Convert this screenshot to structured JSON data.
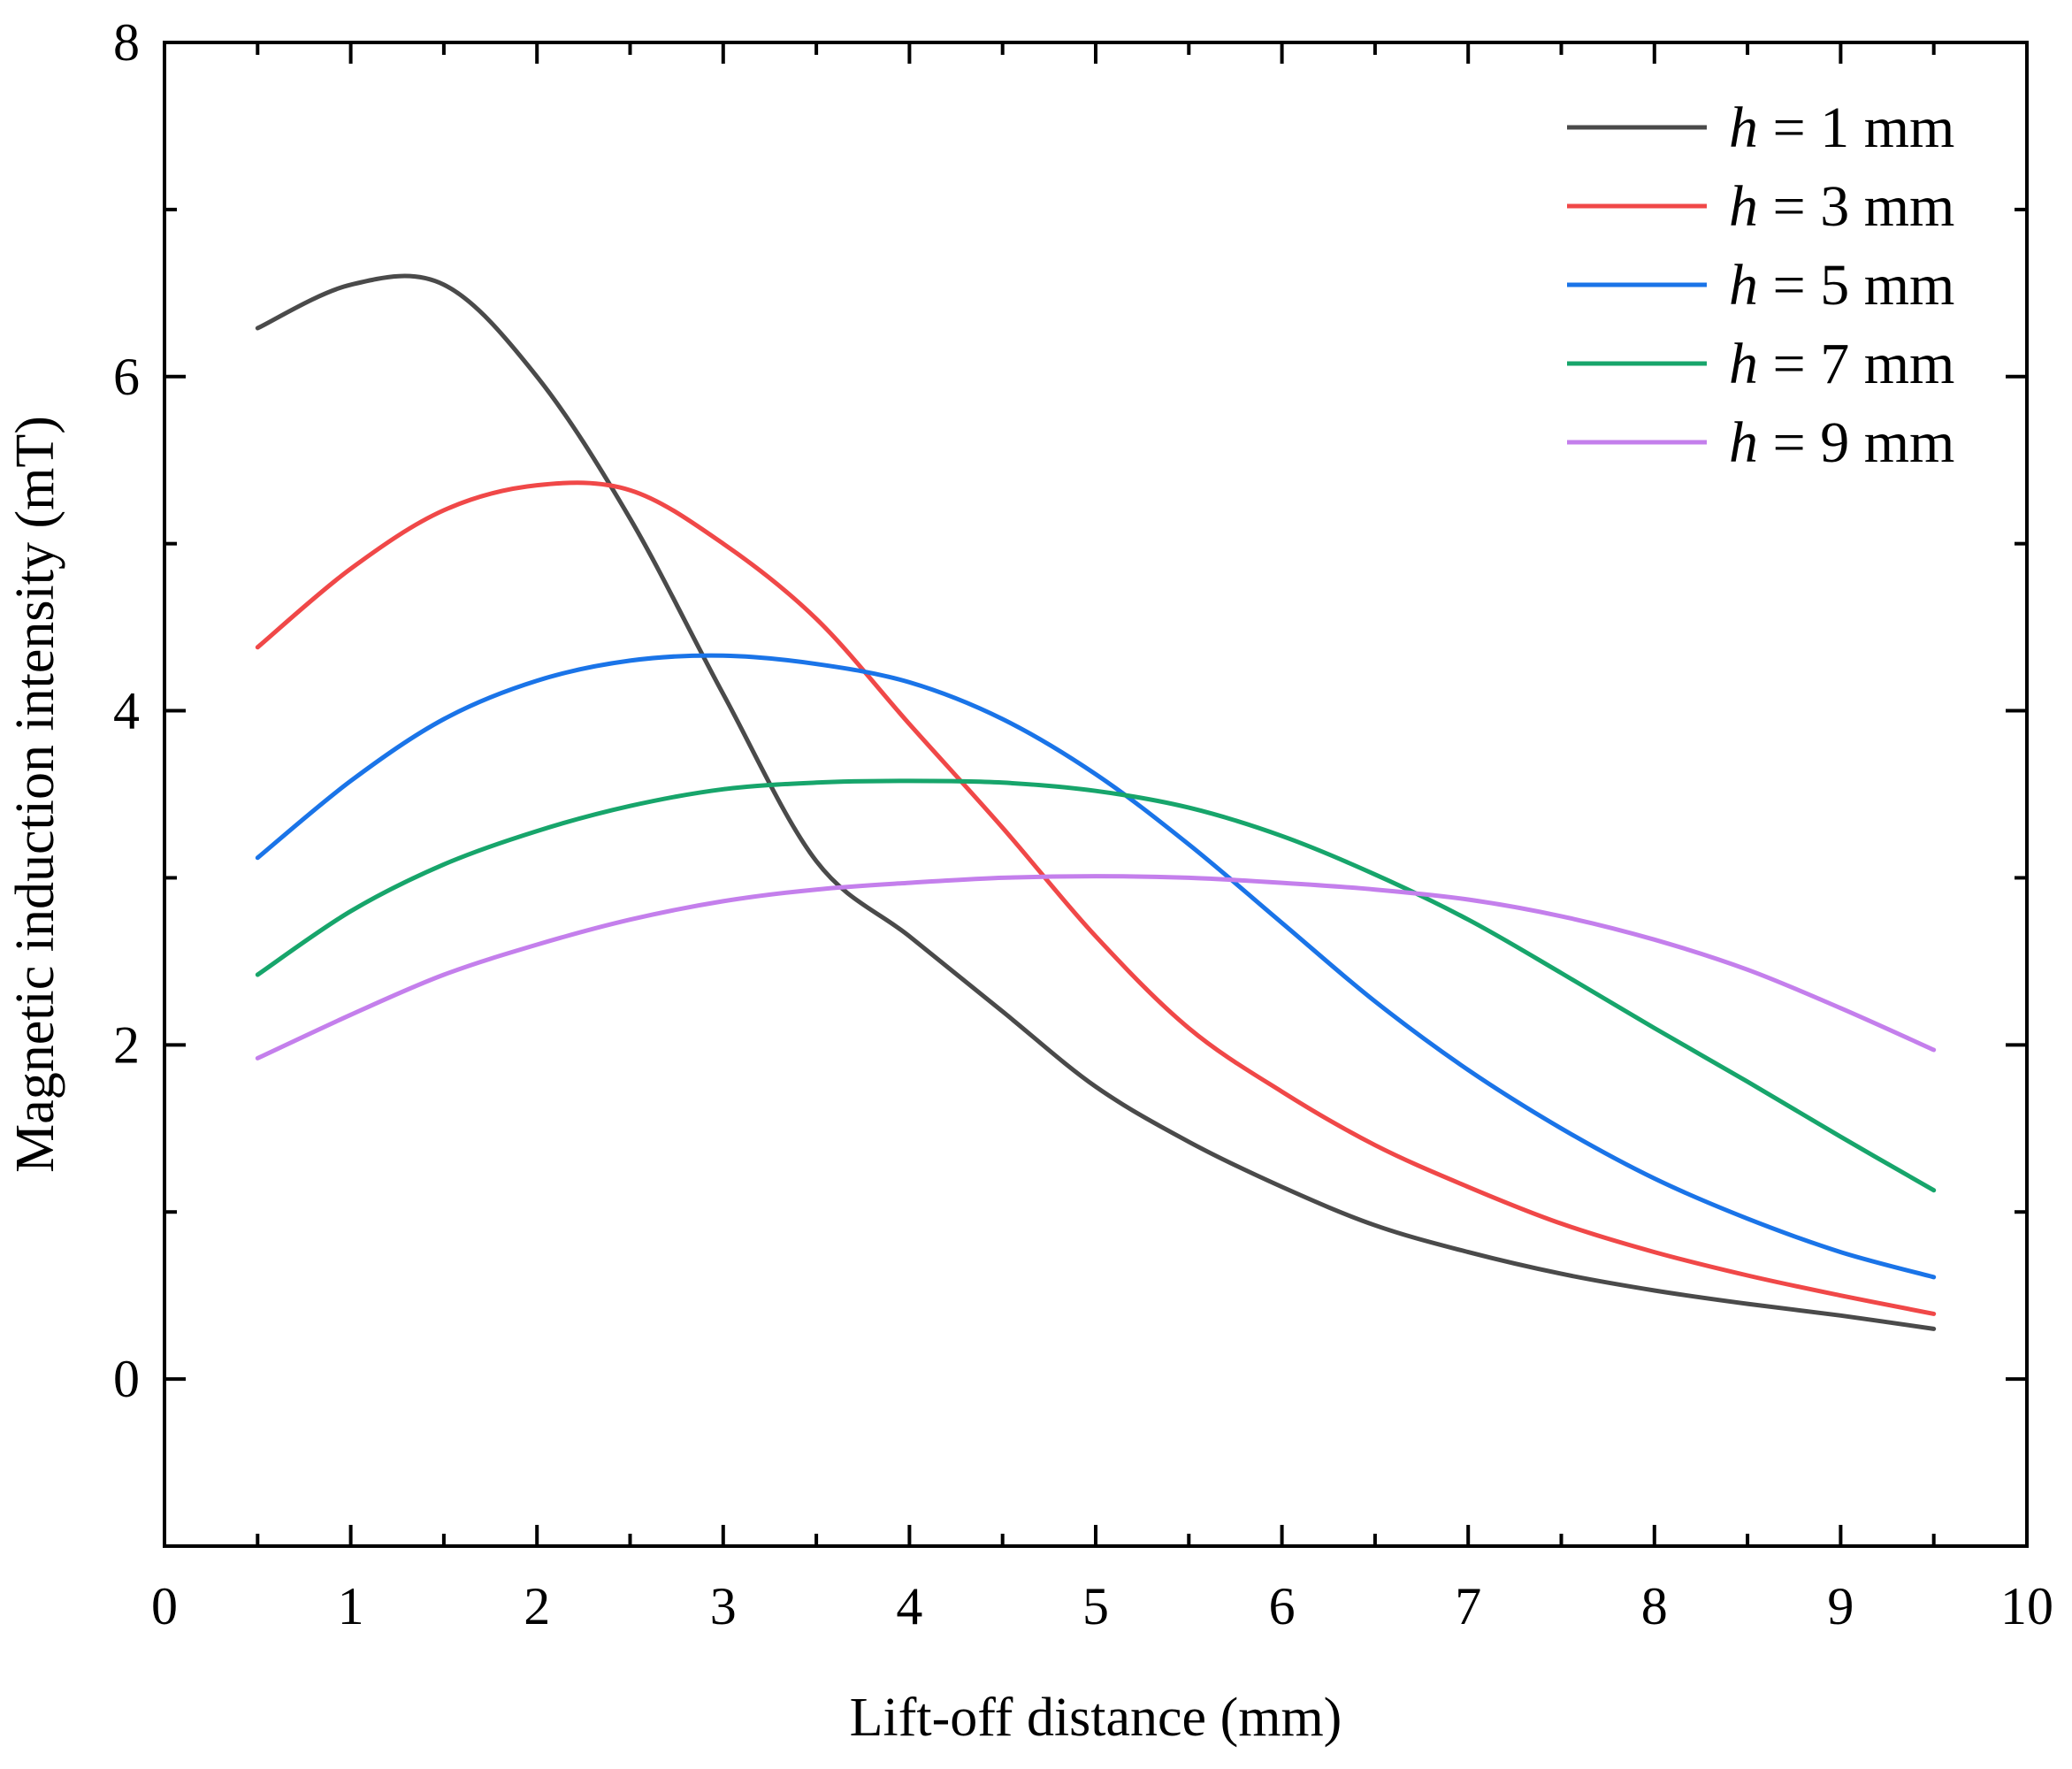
{
  "chart_data": {
    "type": "line",
    "title": "",
    "xlabel": "Lift-off distance (mm)",
    "ylabel": "Magnetic induction intensity (mT)",
    "xlim": [
      0,
      10
    ],
    "ylim": [
      -1,
      8
    ],
    "x_ticks": [
      0,
      1,
      2,
      3,
      4,
      5,
      6,
      7,
      8,
      9,
      10
    ],
    "x_tick_labels": [
      "0",
      "1",
      "2",
      "3",
      "4",
      "5",
      "6",
      "7",
      "8",
      "9",
      "10"
    ],
    "y_ticks": [
      0,
      2,
      4,
      6,
      8
    ],
    "y_tick_labels": [
      "0",
      "2",
      "4",
      "6",
      "8"
    ],
    "grid": false,
    "legend_position": "top-right",
    "x": [
      0.5,
      1.0,
      1.5,
      2.0,
      2.5,
      3.0,
      3.5,
      4.0,
      4.5,
      5.0,
      5.5,
      6.0,
      6.5,
      7.0,
      7.5,
      8.0,
      8.5,
      9.0,
      9.5
    ],
    "series": [
      {
        "name": "h = 1 mm",
        "var": "h",
        "rest": " = 1 mm",
        "color": "#4a4a4a",
        "values": [
          6.29,
          6.55,
          6.55,
          6.0,
          5.15,
          4.1,
          3.1,
          2.65,
          2.2,
          1.75,
          1.42,
          1.15,
          0.92,
          0.76,
          0.63,
          0.53,
          0.45,
          0.38,
          0.3
        ]
      },
      {
        "name": "h = 3 mm",
        "var": "h",
        "rest": " = 3 mm",
        "color": "#f04848",
        "values": [
          4.38,
          4.85,
          5.2,
          5.35,
          5.32,
          5.0,
          4.55,
          3.92,
          3.3,
          2.65,
          2.1,
          1.72,
          1.4,
          1.15,
          0.93,
          0.76,
          0.62,
          0.5,
          0.39
        ]
      },
      {
        "name": "h = 5 mm",
        "var": "h",
        "rest": " = 5 mm",
        "color": "#1a74e8",
        "values": [
          3.12,
          3.58,
          3.95,
          4.18,
          4.3,
          4.33,
          4.28,
          4.17,
          3.95,
          3.62,
          3.2,
          2.73,
          2.26,
          1.85,
          1.5,
          1.2,
          0.96,
          0.76,
          0.61
        ]
      },
      {
        "name": "h = 7 mm",
        "var": "h",
        "rest": " = 7 mm",
        "color": "#17a56b",
        "values": [
          2.42,
          2.8,
          3.08,
          3.28,
          3.43,
          3.53,
          3.57,
          3.58,
          3.57,
          3.52,
          3.42,
          3.25,
          3.02,
          2.75,
          2.43,
          2.1,
          1.78,
          1.45,
          1.13
        ]
      },
      {
        "name": "h = 9 mm",
        "var": "h",
        "rest": " = 9 mm",
        "color": "#c47fec",
        "values": [
          1.92,
          2.18,
          2.42,
          2.6,
          2.75,
          2.86,
          2.93,
          2.97,
          3.0,
          3.01,
          3.0,
          2.97,
          2.93,
          2.87,
          2.77,
          2.63,
          2.45,
          2.22,
          1.97
        ]
      }
    ]
  }
}
